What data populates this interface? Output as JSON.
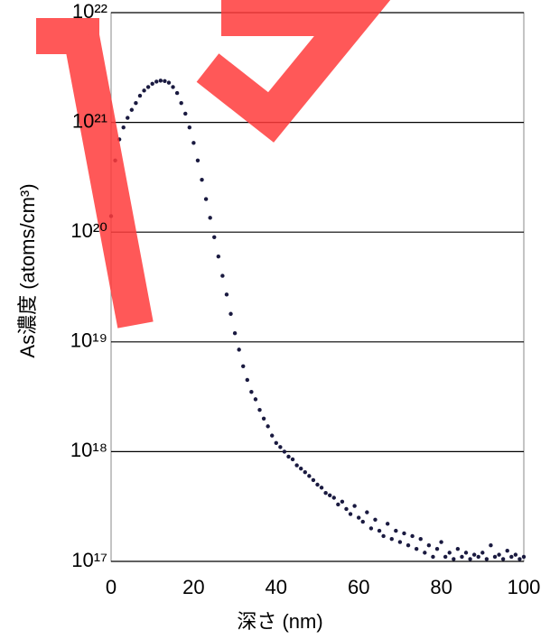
{
  "chart_data": {
    "type": "scatter",
    "x_label": "深さ (nm)",
    "y_label": "As濃度 (atoms/cm³)",
    "x": [
      0,
      1,
      2,
      3,
      4,
      5,
      6,
      7,
      8,
      9,
      10,
      11,
      12,
      13,
      14,
      15,
      16,
      17,
      18,
      19,
      20,
      21,
      22,
      23,
      24,
      25,
      26,
      27,
      28,
      29,
      30,
      31,
      32,
      33,
      34,
      35,
      36,
      37,
      38,
      39,
      40,
      41,
      42,
      43,
      44,
      45,
      46,
      47,
      48,
      49,
      50,
      51,
      52,
      53,
      54,
      55,
      56,
      57,
      58,
      59,
      60,
      61,
      62,
      63,
      64,
      65,
      66,
      67,
      68,
      69,
      70,
      71,
      72,
      73,
      74,
      75,
      76,
      77,
      78,
      79,
      80,
      81,
      82,
      83,
      84,
      85,
      86,
      87,
      88,
      89,
      90,
      91,
      92,
      93,
      94,
      95,
      96,
      97,
      98,
      99,
      100
    ],
    "values": [
      1.4e+20,
      4.5e+20,
      7e+20,
      9e+20,
      1.1e+21,
      1.3e+21,
      1.5e+21,
      1.75e+21,
      1.95e+21,
      2.1e+21,
      2.25e+21,
      2.35e+21,
      2.4e+21,
      2.38e+21,
      2.3e+21,
      2.1e+21,
      1.85e+21,
      1.5e+21,
      1.2e+21,
      9e+20,
      6.5e+20,
      4.5e+20,
      3e+20,
      2e+20,
      1.35e+20,
      9e+19,
      6e+19,
      4e+19,
      2.7e+19,
      1.8e+19,
      1.2e+19,
      8.5e+18,
      6e+18,
      4.5e+18,
      3.5e+18,
      3e+18,
      2.4e+18,
      2e+18,
      1.7e+18,
      1.4e+18,
      1.2e+18,
      1.1e+18,
      1e+18,
      9e+17,
      8.5e+17,
      7.5e+17,
      7e+17,
      6.5e+17,
      6e+17,
      5.5e+17,
      5e+17,
      4.7e+17,
      4.2e+17,
      4e+17,
      3.8e+17,
      3.3e+17,
      3.5e+17,
      3e+17,
      2.7e+17,
      3.2e+17,
      2.5e+17,
      2.3e+17,
      2.8e+17,
      2e+17,
      2.4e+17,
      1.9e+17,
      1.7e+17,
      2.2e+17,
      1.6e+17,
      1.9e+17,
      1.5e+17,
      1.8e+17,
      1.4e+17,
      1.7e+17,
      1.3e+17,
      1.6e+17,
      1.2e+17,
      1.4e+17,
      1.1e+17,
      1.3e+17,
      1.5e+17,
      1.1e+17,
      1.2e+17,
      1.05e+17,
      1.3e+17,
      1.1e+17,
      1.2e+17,
      1.05e+17,
      1.15e+17,
      1.1e+17,
      1.2e+17,
      1.05e+17,
      1.4e+17,
      1.1e+17,
      1.15e+17,
      1.05e+17,
      1.25e+17,
      1.1e+17,
      1.15e+17,
      1.05e+17,
      1.1e+17
    ],
    "color": "#1a1a40",
    "xlim": [
      0,
      100
    ],
    "xticks": [
      0,
      20,
      40,
      60,
      80,
      100
    ],
    "ylim": [
      1e+17,
      1e+22
    ],
    "log_y": true,
    "yticks": [
      {
        "value": 1e+17,
        "label": "10¹⁷"
      },
      {
        "value": 1e+18,
        "label": "10¹⁸"
      },
      {
        "value": 1e+19,
        "label": "10¹⁹"
      },
      {
        "value": 1e+20,
        "label": "10²⁰"
      },
      {
        "value": 1e+21,
        "label": "10²¹"
      },
      {
        "value": 1e+22,
        "label": "10²²"
      }
    ],
    "grid": true
  }
}
